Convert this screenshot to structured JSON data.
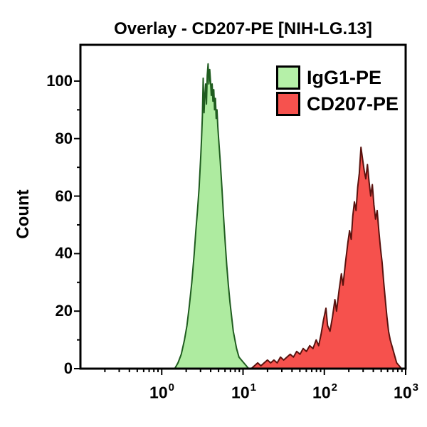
{
  "title": "Overlay - CD207-PE [NIH-LG.13]",
  "y_axis": {
    "label": "Count",
    "ticks": [
      "0",
      "20",
      "40",
      "60",
      "80",
      "100"
    ]
  },
  "x_axis": {
    "tick_base": "10",
    "tick_exponents": [
      "0",
      "1",
      "2",
      "3"
    ]
  },
  "legend": {
    "position": "top-right",
    "items": [
      {
        "label": "IgG1-PE",
        "color": "#b5f0a8",
        "border": "#000000"
      },
      {
        "label": "CD207-PE",
        "color": "#f6524e",
        "border": "#000000"
      }
    ]
  },
  "chart_data": {
    "type": "area",
    "subtype": "flow-cytometry-histogram-overlay",
    "title": "Overlay - CD207-PE [NIH-LG.13]",
    "xlabel": "",
    "ylabel": "Count",
    "x_scale": "log10",
    "xlim_log10": [
      -1,
      3
    ],
    "ylim": [
      0,
      112.6
    ],
    "x_major_ticks_log10": [
      0,
      1,
      2,
      3
    ],
    "y_major_ticks": [
      0,
      20,
      40,
      60,
      80,
      100
    ],
    "y_minor_ticks": [
      10,
      30,
      50,
      70,
      90
    ],
    "grid": false,
    "legend_position": "top-right",
    "axis_color": "#000000",
    "background": "#ffffff",
    "series": [
      {
        "name": "IgG1-PE",
        "fill": "#aeeba0",
        "stroke": "#1f5c1f",
        "peak_x_approx": 3.7,
        "peak_count_approx": 106,
        "points_log10x_count": [
          [
            0.16,
            0
          ],
          [
            0.2,
            2
          ],
          [
            0.24,
            5
          ],
          [
            0.28,
            10
          ],
          [
            0.31,
            15
          ],
          [
            0.34,
            22
          ],
          [
            0.37,
            30
          ],
          [
            0.4,
            40
          ],
          [
            0.42,
            48
          ],
          [
            0.44,
            55
          ],
          [
            0.46,
            63
          ],
          [
            0.48,
            74
          ],
          [
            0.49,
            80
          ],
          [
            0.5,
            88
          ],
          [
            0.51,
            101
          ],
          [
            0.52,
            89
          ],
          [
            0.53,
            95
          ],
          [
            0.54,
            99
          ],
          [
            0.55,
            92
          ],
          [
            0.56,
            102
          ],
          [
            0.57,
            106
          ],
          [
            0.58,
            99
          ],
          [
            0.59,
            104
          ],
          [
            0.6,
            100
          ],
          [
            0.61,
            95
          ],
          [
            0.62,
            99
          ],
          [
            0.63,
            93
          ],
          [
            0.64,
            97
          ],
          [
            0.65,
            90
          ],
          [
            0.66,
            94
          ],
          [
            0.67,
            87
          ],
          [
            0.68,
            90
          ],
          [
            0.69,
            84
          ],
          [
            0.7,
            80
          ],
          [
            0.72,
            72
          ],
          [
            0.74,
            63
          ],
          [
            0.76,
            53
          ],
          [
            0.78,
            44
          ],
          [
            0.8,
            36
          ],
          [
            0.82,
            29
          ],
          [
            0.84,
            23
          ],
          [
            0.86,
            18
          ],
          [
            0.88,
            13
          ],
          [
            0.9,
            10
          ],
          [
            0.92,
            7
          ],
          [
            0.95,
            4
          ],
          [
            0.98,
            3
          ],
          [
            1.01,
            2
          ],
          [
            1.04,
            1
          ],
          [
            1.07,
            0
          ]
        ]
      },
      {
        "name": "CD207-PE",
        "fill": "#f6514d",
        "stroke": "#5a120e",
        "peak_x_approx": 280,
        "peak_count_approx": 77,
        "points_log10x_count": [
          [
            1.1,
            0
          ],
          [
            1.14,
            1
          ],
          [
            1.18,
            2
          ],
          [
            1.22,
            1
          ],
          [
            1.26,
            2
          ],
          [
            1.3,
            3
          ],
          [
            1.34,
            2
          ],
          [
            1.38,
            3
          ],
          [
            1.42,
            2
          ],
          [
            1.46,
            4
          ],
          [
            1.5,
            3
          ],
          [
            1.54,
            4
          ],
          [
            1.58,
            5
          ],
          [
            1.62,
            4
          ],
          [
            1.66,
            6
          ],
          [
            1.7,
            5
          ],
          [
            1.74,
            7
          ],
          [
            1.78,
            6
          ],
          [
            1.82,
            8
          ],
          [
            1.86,
            7
          ],
          [
            1.9,
            10
          ],
          [
            1.93,
            8
          ],
          [
            1.96,
            12
          ],
          [
            1.99,
            17
          ],
          [
            2.02,
            21
          ],
          [
            2.04,
            15
          ],
          [
            2.07,
            13
          ],
          [
            2.1,
            18
          ],
          [
            2.13,
            24
          ],
          [
            2.15,
            20
          ],
          [
            2.18,
            27
          ],
          [
            2.21,
            33
          ],
          [
            2.23,
            29
          ],
          [
            2.26,
            37
          ],
          [
            2.29,
            44
          ],
          [
            2.31,
            48
          ],
          [
            2.33,
            45
          ],
          [
            2.35,
            53
          ],
          [
            2.37,
            58
          ],
          [
            2.39,
            55
          ],
          [
            2.41,
            63
          ],
          [
            2.43,
            68
          ],
          [
            2.45,
            77
          ],
          [
            2.47,
            73
          ],
          [
            2.49,
            69
          ],
          [
            2.51,
            66
          ],
          [
            2.53,
            71
          ],
          [
            2.55,
            65
          ],
          [
            2.57,
            60
          ],
          [
            2.59,
            64
          ],
          [
            2.61,
            57
          ],
          [
            2.63,
            52
          ],
          [
            2.65,
            55
          ],
          [
            2.67,
            48
          ],
          [
            2.69,
            42
          ],
          [
            2.71,
            37
          ],
          [
            2.73,
            30
          ],
          [
            2.75,
            24
          ],
          [
            2.77,
            18
          ],
          [
            2.79,
            13
          ],
          [
            2.81,
            10
          ],
          [
            2.83,
            8
          ],
          [
            2.85,
            6
          ],
          [
            2.87,
            4
          ],
          [
            2.89,
            2
          ],
          [
            2.92,
            1
          ],
          [
            2.95,
            0
          ]
        ]
      }
    ]
  }
}
